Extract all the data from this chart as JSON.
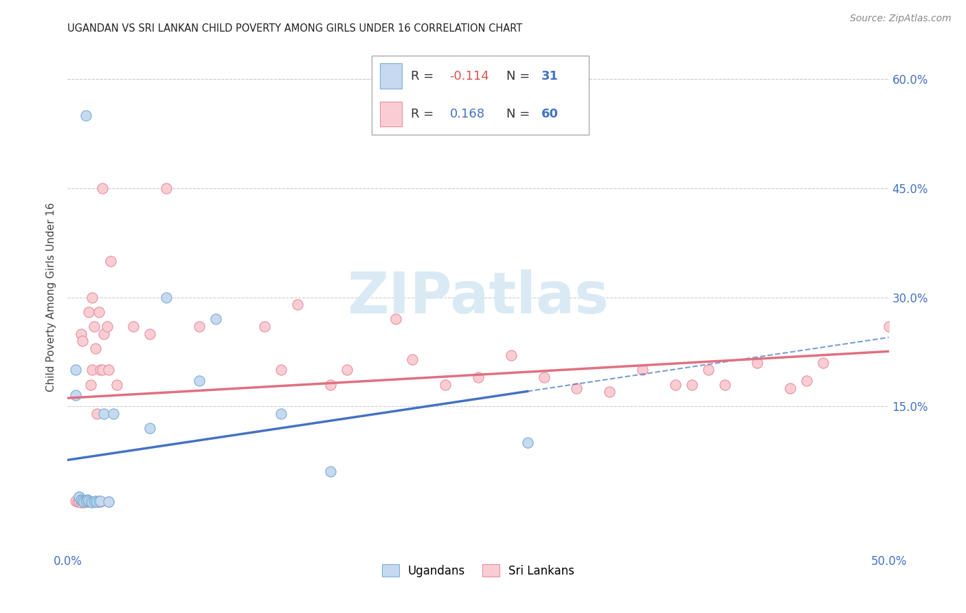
{
  "title": "UGANDAN VS SRI LANKAN CHILD POVERTY AMONG GIRLS UNDER 16 CORRELATION CHART",
  "source": "Source: ZipAtlas.com",
  "ylabel": "Child Poverty Among Girls Under 16",
  "xlim": [
    0.0,
    0.5
  ],
  "ylim": [
    -0.05,
    0.65
  ],
  "yticks": [
    0.15,
    0.3,
    0.45,
    0.6
  ],
  "yticklabels_right": [
    "15.0%",
    "30.0%",
    "45.0%",
    "60.0%"
  ],
  "legend_r_ugandan": "-0.114",
  "legend_n_ugandan": "31",
  "legend_r_srilankan": "0.168",
  "legend_n_srilankan": "60",
  "ugandan_color": "#c6d9f0",
  "srilankan_color": "#f9cdd3",
  "ugandan_edge_color": "#7aafd4",
  "srilankan_edge_color": "#e88fa0",
  "ugandan_line_color": "#4472c4",
  "srilankan_line_color": "#e07080",
  "watermark_color": "#daeaf5",
  "ugandan_x": [
    0.005,
    0.005,
    0.007,
    0.007,
    0.008,
    0.008,
    0.009,
    0.01,
    0.01,
    0.011,
    0.011,
    0.012,
    0.012,
    0.013,
    0.014,
    0.015,
    0.016,
    0.017,
    0.018,
    0.019,
    0.02,
    0.022,
    0.025,
    0.028,
    0.05,
    0.06,
    0.08,
    0.09,
    0.13,
    0.16,
    0.28
  ],
  "ugandan_y": [
    0.2,
    0.165,
    0.025,
    0.025,
    0.022,
    0.021,
    0.02,
    0.019,
    0.019,
    0.02,
    0.55,
    0.022,
    0.021,
    0.02,
    0.019,
    0.018,
    0.019,
    0.02,
    0.019,
    0.02,
    0.02,
    0.14,
    0.019,
    0.14,
    0.12,
    0.3,
    0.185,
    0.27,
    0.14,
    0.06,
    0.1
  ],
  "srilankan_x": [
    0.005,
    0.006,
    0.007,
    0.008,
    0.008,
    0.009,
    0.01,
    0.01,
    0.011,
    0.012,
    0.013,
    0.013,
    0.014,
    0.014,
    0.015,
    0.015,
    0.016,
    0.016,
    0.017,
    0.018,
    0.018,
    0.019,
    0.019,
    0.02,
    0.02,
    0.021,
    0.021,
    0.022,
    0.024,
    0.025,
    0.025,
    0.026,
    0.03,
    0.04,
    0.05,
    0.06,
    0.08,
    0.12,
    0.13,
    0.14,
    0.16,
    0.17,
    0.2,
    0.21,
    0.23,
    0.25,
    0.27,
    0.29,
    0.31,
    0.33,
    0.35,
    0.37,
    0.39,
    0.4,
    0.42,
    0.44,
    0.46,
    0.38,
    0.45,
    0.5
  ],
  "srilankan_y": [
    0.02,
    0.019,
    0.019,
    0.018,
    0.25,
    0.24,
    0.019,
    0.018,
    0.02,
    0.019,
    0.019,
    0.28,
    0.18,
    0.019,
    0.3,
    0.2,
    0.26,
    0.019,
    0.23,
    0.14,
    0.019,
    0.019,
    0.28,
    0.2,
    0.019,
    0.2,
    0.45,
    0.25,
    0.26,
    0.2,
    0.019,
    0.35,
    0.18,
    0.26,
    0.25,
    0.45,
    0.26,
    0.26,
    0.2,
    0.29,
    0.18,
    0.2,
    0.27,
    0.215,
    0.18,
    0.19,
    0.22,
    0.19,
    0.175,
    0.17,
    0.2,
    0.18,
    0.2,
    0.18,
    0.21,
    0.175,
    0.21,
    0.18,
    0.185,
    0.26
  ]
}
